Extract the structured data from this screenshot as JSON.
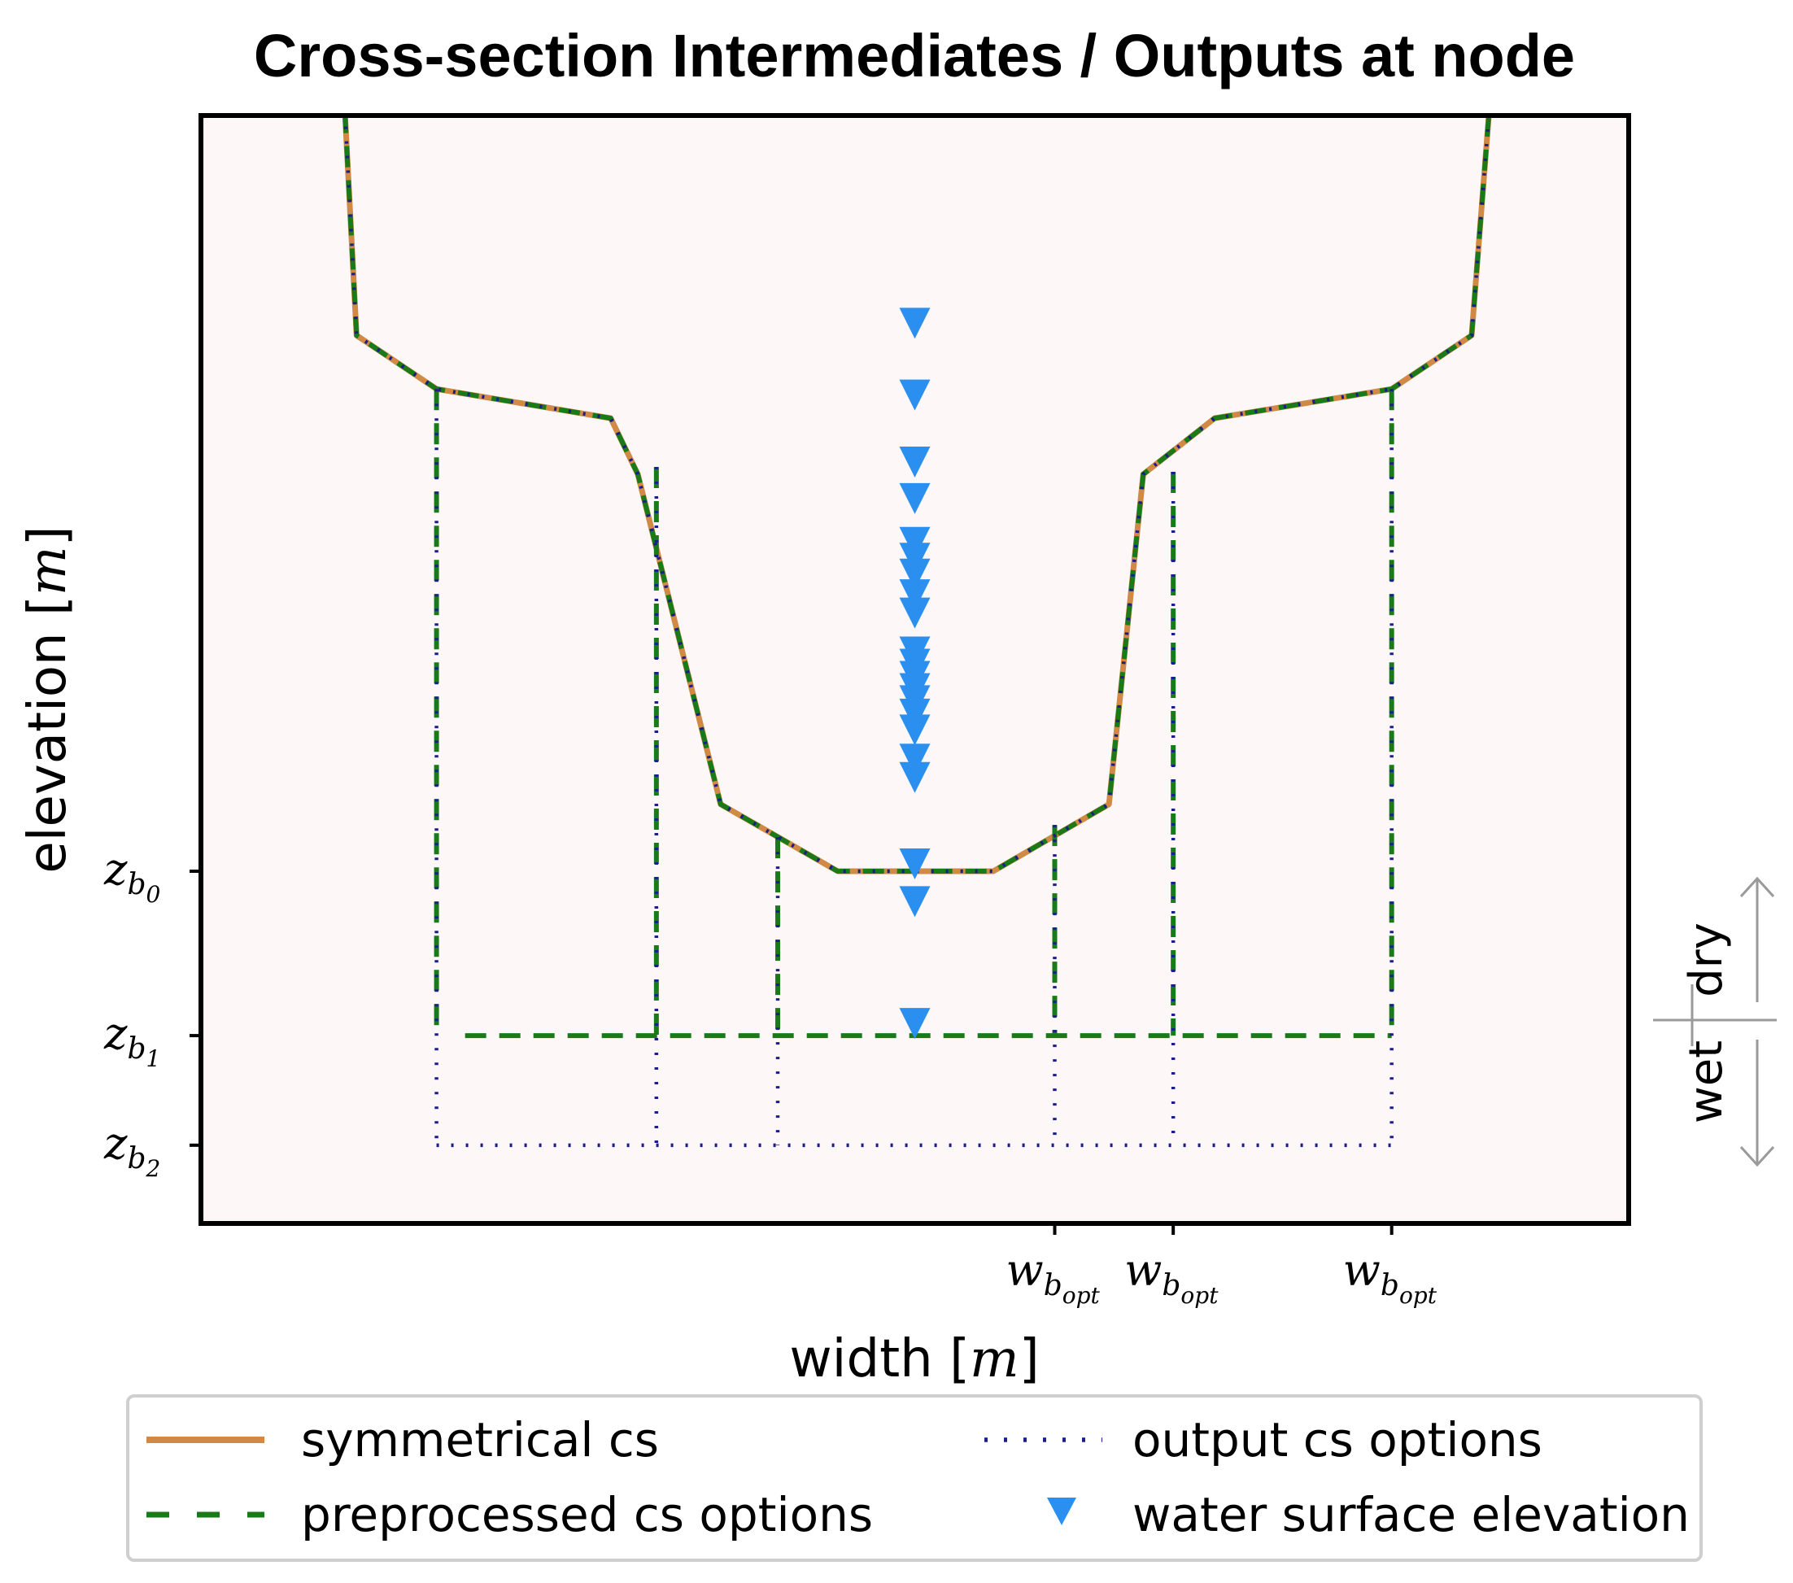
{
  "chart_data": {
    "type": "line",
    "title": "Cross-section Intermediates / Outputs at node",
    "xlabel_text": "width [",
    "xlabel_unit": "m",
    "xlabel_close": "]",
    "ylabel_text": "elevation [",
    "ylabel_unit": "m",
    "ylabel_close": "]",
    "xlim": [
      0,
      100
    ],
    "ylim": [
      -22,
      78
    ],
    "grid": false,
    "legend_placement": "bottom",
    "plot_background": "#fdf8f7",
    "yticks": [
      {
        "value": 0,
        "main": "z",
        "sub": "b",
        "subsub": "0"
      },
      {
        "value": -13.5,
        "main": "z",
        "sub": "b",
        "subsub": "1"
      },
      {
        "value": -22.5,
        "main": "z",
        "sub": "b",
        "subsub": "2"
      }
    ],
    "xticks": [
      {
        "value": 59.8,
        "main": "w",
        "sub": "b",
        "subsub": "opt"
      },
      {
        "value": 68.1,
        "main": "w",
        "sub": "b",
        "subsub": "opt"
      },
      {
        "value": 83.4,
        "main": "w",
        "sub": "b",
        "subsub": "opt"
      }
    ],
    "wet_dry": {
      "dry": "dry",
      "wet": "wet"
    },
    "series": [
      {
        "name": "symmetrical cs",
        "color": "#d08a45",
        "style": "solid",
        "x": [
          0,
          9.9,
          10.9,
          16.5,
          28.7,
          30.6,
          36.4,
          44.6,
          55.5,
          63.6,
          66.0,
          71.0,
          83.4,
          89.0,
          90.5,
          100
        ],
        "y": [
          71.6,
          66.5,
          44.0,
          39.6,
          37.2,
          32.6,
          5.5,
          0,
          0,
          5.5,
          32.6,
          37.2,
          39.6,
          44.0,
          66.5,
          71.6
        ]
      },
      {
        "name": "preprocessed cs options",
        "color": "#1a7a1a",
        "style": "dashed",
        "x": [
          0,
          9.9,
          10.9,
          16.5,
          28.7,
          30.6,
          36.4,
          44.6,
          55.5,
          63.6,
          66.0,
          71.0,
          83.4,
          89.0,
          90.5,
          100
        ],
        "y": [
          71.6,
          66.5,
          44.0,
          39.6,
          37.2,
          32.6,
          5.5,
          0,
          0,
          5.5,
          32.6,
          37.2,
          39.6,
          44.0,
          66.5,
          71.6
        ],
        "segments": [
          {
            "x": [
              16.5,
              16.5
            ],
            "y": [
              39.6,
              -13.5
            ]
          },
          {
            "x": [
              31.9,
              31.9
            ],
            "y": [
              33.2,
              -13.5
            ]
          },
          {
            "x": [
              40.4,
              40.4
            ],
            "y": [
              2.8,
              -13.5
            ]
          },
          {
            "x": [
              59.8,
              59.8
            ],
            "y": [
              3.8,
              -13.5
            ]
          },
          {
            "x": [
              68.1,
              68.1
            ],
            "y": [
              32.8,
              -13.5
            ]
          },
          {
            "x": [
              83.4,
              83.4
            ],
            "y": [
              39.6,
              -13.5
            ]
          },
          {
            "x": [
              18.5,
              83.4
            ],
            "y": [
              -13.5,
              -13.5
            ]
          }
        ]
      },
      {
        "name": "output cs options",
        "color": "#1c1c8a",
        "style": "dotted",
        "x": [
          0,
          9.9,
          10.9,
          16.5,
          28.7,
          30.6,
          36.4,
          44.6,
          55.5,
          63.6,
          66.0,
          71.0,
          83.4,
          89.0,
          90.5,
          100
        ],
        "y": [
          71.6,
          66.5,
          44.0,
          39.6,
          37.2,
          32.6,
          5.5,
          0,
          0,
          5.5,
          32.6,
          37.2,
          39.6,
          44.0,
          66.5,
          71.6
        ],
        "segments": [
          {
            "x": [
              16.5,
              16.5
            ],
            "y": [
              39.6,
              -22.5
            ]
          },
          {
            "x": [
              31.9,
              31.9
            ],
            "y": [
              33.2,
              -22.5
            ]
          },
          {
            "x": [
              40.4,
              40.4
            ],
            "y": [
              2.8,
              -22.5
            ]
          },
          {
            "x": [
              59.8,
              59.8
            ],
            "y": [
              3.8,
              -22.5
            ]
          },
          {
            "x": [
              68.1,
              68.1
            ],
            "y": [
              32.8,
              -22.5
            ]
          },
          {
            "x": [
              83.4,
              83.4
            ],
            "y": [
              39.6,
              -22.5
            ]
          },
          {
            "x": [
              16.5,
              83.4
            ],
            "y": [
              -22.5,
              -22.5
            ]
          }
        ]
      },
      {
        "name": "water surface elevation",
        "color": "#2b8fef",
        "style": "marker-triangle-down",
        "x": [
          50,
          50,
          50,
          50,
          50,
          50,
          50,
          50,
          50,
          50,
          50,
          50,
          50,
          50,
          50,
          50,
          50,
          50,
          50,
          50,
          50
        ],
        "y": [
          45.0,
          39.1,
          33.6,
          30.6,
          27.0,
          25.7,
          24.4,
          22.7,
          21.2,
          18.0,
          17.0,
          16.0,
          15.0,
          14.0,
          12.9,
          11.6,
          9.2,
          7.7,
          0.6,
          -2.5,
          -12.5
        ]
      }
    ]
  },
  "legend": {
    "items": [
      {
        "label": "symmetrical cs",
        "color": "#d08a45",
        "style": "solid"
      },
      {
        "label": "output cs options",
        "color": "#1c1c8a",
        "style": "dotted"
      },
      {
        "label": "preprocessed cs options",
        "color": "#1a7a1a",
        "style": "dashed"
      },
      {
        "label": "water surface elevation",
        "color": "#2b8fef",
        "style": "marker"
      }
    ]
  }
}
